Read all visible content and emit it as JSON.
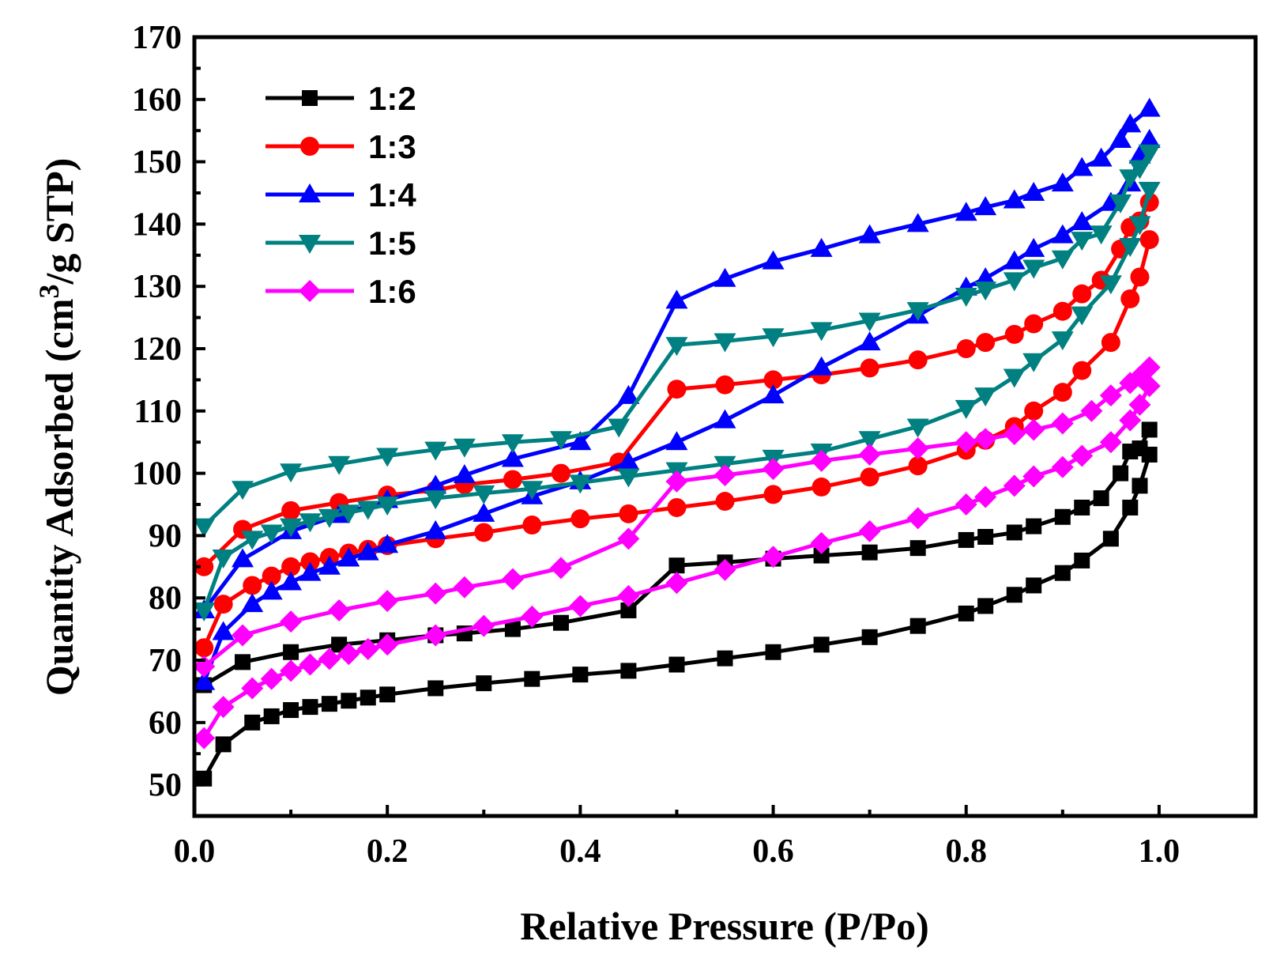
{
  "chart_data": {
    "type": "line",
    "title": "",
    "xlabel": "Relative Pressure (P/Po)",
    "ylabel_main": "Quantity Adsorbed (cm",
    "ylabel_sup": "3",
    "ylabel_tail": "/g STP)",
    "xlim": [
      0.0,
      1.1
    ],
    "ylim": [
      45,
      170
    ],
    "x_ticks": [
      0.0,
      0.2,
      0.4,
      0.6,
      0.8,
      1.0
    ],
    "x_tick_labels": [
      "0.0",
      "0.2",
      "0.4",
      "0.6",
      "0.8",
      "1.0"
    ],
    "y_ticks": [
      50,
      60,
      70,
      80,
      90,
      100,
      110,
      120,
      130,
      140,
      150,
      160,
      170
    ],
    "y_tick_labels": [
      "50",
      "60",
      "70",
      "80",
      "90",
      "100",
      "110",
      "120",
      "130",
      "140",
      "150",
      "160",
      "170"
    ],
    "grid": false,
    "legend_position": "top-left",
    "series": [
      {
        "name": "1:2",
        "color": "#000000",
        "marker": "square",
        "adsorption": {
          "x": [
            0.01,
            0.03,
            0.06,
            0.08,
            0.1,
            0.12,
            0.14,
            0.16,
            0.18,
            0.2,
            0.25,
            0.3,
            0.35,
            0.4,
            0.45,
            0.5,
            0.55,
            0.6,
            0.65,
            0.7,
            0.75,
            0.8,
            0.82,
            0.85,
            0.87,
            0.9,
            0.92,
            0.95,
            0.97,
            0.98,
            0.99
          ],
          "y": [
            51,
            56.5,
            60,
            61,
            62,
            62.5,
            63,
            63.5,
            64,
            64.5,
            65.5,
            66.3,
            67,
            67.7,
            68.3,
            69.3,
            70.3,
            71.3,
            72.5,
            73.7,
            75.5,
            77.5,
            78.7,
            80.5,
            82,
            84,
            86,
            89.5,
            94.5,
            98,
            103
          ]
        },
        "desorption": {
          "x": [
            0.99,
            0.98,
            0.97,
            0.96,
            0.94,
            0.92,
            0.9,
            0.87,
            0.85,
            0.82,
            0.8,
            0.75,
            0.7,
            0.65,
            0.6,
            0.55,
            0.5,
            0.45,
            0.38,
            0.33,
            0.28,
            0.25,
            0.2,
            0.15,
            0.1,
            0.05,
            0.01
          ],
          "y": [
            107,
            104,
            103.5,
            100,
            96,
            94.5,
            93,
            91.5,
            90.5,
            89.8,
            89.3,
            88,
            87.3,
            86.8,
            86.3,
            85.7,
            85.2,
            78,
            76,
            75,
            74.3,
            74,
            73.2,
            72.5,
            71.3,
            69.7,
            66
          ]
        }
      },
      {
        "name": "1:3",
        "color": "#ff0000",
        "marker": "circle",
        "adsorption": {
          "x": [
            0.01,
            0.03,
            0.06,
            0.08,
            0.1,
            0.12,
            0.14,
            0.16,
            0.18,
            0.2,
            0.25,
            0.3,
            0.35,
            0.4,
            0.45,
            0.5,
            0.55,
            0.6,
            0.65,
            0.7,
            0.75,
            0.8,
            0.82,
            0.85,
            0.87,
            0.9,
            0.92,
            0.95,
            0.97,
            0.98,
            0.99
          ],
          "y": [
            72,
            79,
            82,
            83.5,
            85,
            85.8,
            86.5,
            87.2,
            87.8,
            88.4,
            89.5,
            90.5,
            91.7,
            92.7,
            93.5,
            94.5,
            95.5,
            96.6,
            97.8,
            99.4,
            101.2,
            103.7,
            105.3,
            107.5,
            110,
            113,
            116.5,
            121,
            128,
            131.5,
            137.5
          ]
        },
        "desorption": {
          "x": [
            0.99,
            0.98,
            0.97,
            0.96,
            0.94,
            0.92,
            0.9,
            0.87,
            0.85,
            0.82,
            0.8,
            0.75,
            0.7,
            0.65,
            0.6,
            0.55,
            0.5,
            0.44,
            0.38,
            0.33,
            0.28,
            0.25,
            0.2,
            0.15,
            0.1,
            0.05,
            0.01
          ],
          "y": [
            143.5,
            140.5,
            139.5,
            136,
            131,
            128.8,
            126,
            124,
            122.3,
            121,
            120,
            118.2,
            116.9,
            115.8,
            115,
            114.2,
            113.5,
            101.8,
            100,
            99,
            98.2,
            97.3,
            96.5,
            95.3,
            94,
            91,
            85
          ]
        }
      },
      {
        "name": "1:4",
        "color": "#0000ff",
        "marker": "triangle-up",
        "adsorption": {
          "x": [
            0.01,
            0.03,
            0.06,
            0.08,
            0.1,
            0.12,
            0.14,
            0.16,
            0.18,
            0.2,
            0.25,
            0.3,
            0.35,
            0.4,
            0.45,
            0.5,
            0.55,
            0.6,
            0.65,
            0.7,
            0.75,
            0.8,
            0.82,
            0.85,
            0.87,
            0.9,
            0.92,
            0.95,
            0.97,
            0.98,
            0.99
          ],
          "y": [
            66.5,
            74.5,
            79,
            81,
            82.5,
            84,
            85,
            86.3,
            87.3,
            88.5,
            90.7,
            93.5,
            96.3,
            98.7,
            101.8,
            105,
            108.5,
            112.5,
            117,
            121,
            125.3,
            129.8,
            131.3,
            134,
            136,
            138.2,
            140.3,
            143.4,
            146.5,
            151,
            153.5
          ]
        },
        "desorption": {
          "x": [
            0.99,
            0.97,
            0.96,
            0.94,
            0.92,
            0.9,
            0.87,
            0.85,
            0.82,
            0.8,
            0.75,
            0.7,
            0.65,
            0.6,
            0.55,
            0.5,
            0.45,
            0.4,
            0.33,
            0.28,
            0.25,
            0.2,
            0.15,
            0.1,
            0.05,
            0.01
          ],
          "y": [
            158.5,
            156,
            153.5,
            150.5,
            149,
            146.5,
            145,
            143.8,
            142.7,
            141.8,
            140,
            138.2,
            136,
            134,
            131.2,
            127.7,
            112.4,
            105,
            102.3,
            99.7,
            98,
            95.7,
            93.3,
            90.7,
            86.2,
            78
          ]
        }
      },
      {
        "name": "1:5",
        "color": "#008080",
        "marker": "triangle-down",
        "adsorption": {
          "x": [
            0.01,
            0.03,
            0.06,
            0.08,
            0.1,
            0.12,
            0.14,
            0.16,
            0.18,
            0.2,
            0.25,
            0.3,
            0.35,
            0.4,
            0.45,
            0.5,
            0.55,
            0.6,
            0.65,
            0.7,
            0.75,
            0.8,
            0.82,
            0.85,
            0.87,
            0.9,
            0.92,
            0.95,
            0.97,
            0.98,
            0.99
          ],
          "y": [
            78,
            86.5,
            89.5,
            90.5,
            91.5,
            92.3,
            93,
            93.7,
            94.3,
            95,
            96,
            96.8,
            97.5,
            98.5,
            99.5,
            100.5,
            101.5,
            102.5,
            103.5,
            105.5,
            107.5,
            110.5,
            112.5,
            115.5,
            118,
            121.5,
            125.5,
            130.5,
            136.5,
            140,
            145.5
          ]
        },
        "desorption": {
          "x": [
            0.99,
            0.98,
            0.97,
            0.96,
            0.94,
            0.92,
            0.9,
            0.87,
            0.85,
            0.82,
            0.8,
            0.75,
            0.7,
            0.65,
            0.6,
            0.55,
            0.5,
            0.44,
            0.38,
            0.33,
            0.28,
            0.25,
            0.2,
            0.15,
            0.1,
            0.05,
            0.01
          ],
          "y": [
            151.5,
            149,
            147.5,
            143.5,
            138.5,
            137.5,
            134.5,
            133,
            131,
            129.5,
            128.5,
            126.2,
            124.5,
            123,
            122,
            121.2,
            120.6,
            107.5,
            105.5,
            105,
            104.3,
            103.8,
            102.8,
            101.5,
            100.3,
            97.5,
            91.5
          ]
        }
      },
      {
        "name": "1:6",
        "color": "#ff00ff",
        "marker": "diamond",
        "adsorption": {
          "x": [
            0.01,
            0.03,
            0.06,
            0.08,
            0.1,
            0.12,
            0.14,
            0.16,
            0.18,
            0.2,
            0.25,
            0.3,
            0.35,
            0.4,
            0.45,
            0.5,
            0.55,
            0.6,
            0.65,
            0.7,
            0.75,
            0.8,
            0.82,
            0.85,
            0.87,
            0.9,
            0.92,
            0.95,
            0.97,
            0.98,
            0.99
          ],
          "y": [
            57.5,
            62.5,
            65.5,
            67,
            68.3,
            69.3,
            70.2,
            71,
            71.8,
            72.5,
            74,
            75.5,
            77,
            78.7,
            80.3,
            82.4,
            84.5,
            86.6,
            88.8,
            90.7,
            92.8,
            95,
            96.2,
            98,
            99.5,
            101,
            102.8,
            105,
            108.5,
            111,
            114
          ]
        },
        "desorption": {
          "x": [
            0.99,
            0.98,
            0.97,
            0.95,
            0.93,
            0.9,
            0.87,
            0.85,
            0.82,
            0.8,
            0.75,
            0.7,
            0.65,
            0.6,
            0.55,
            0.5,
            0.45,
            0.38,
            0.33,
            0.28,
            0.25,
            0.2,
            0.15,
            0.1,
            0.05,
            0.01
          ],
          "y": [
            117,
            115.5,
            114.5,
            112.5,
            110,
            108,
            107,
            106.3,
            105.5,
            105,
            104,
            103,
            102,
            100.7,
            99.7,
            98.7,
            89.5,
            84.8,
            83,
            81.7,
            80.7,
            79.5,
            78,
            76.2,
            74,
            69
          ]
        }
      }
    ]
  }
}
